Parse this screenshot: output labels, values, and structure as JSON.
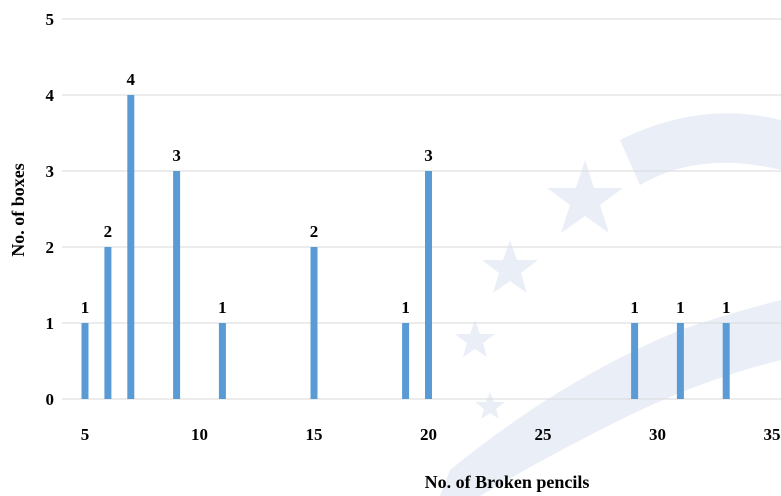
{
  "chart_data": {
    "type": "bar",
    "x": [
      5,
      6,
      7,
      9,
      11,
      15,
      19,
      20,
      29,
      31,
      33
    ],
    "values": [
      1,
      2,
      4,
      3,
      1,
      2,
      1,
      3,
      1,
      1,
      1
    ],
    "data_labels": [
      "1",
      "2",
      "4",
      "3",
      "1",
      "2",
      "1",
      "3",
      "1",
      "1",
      "1"
    ],
    "xlabel": "No. of Broken pencils",
    "ylabel": "No. of boxes",
    "xlim": [
      5,
      35
    ],
    "ylim": [
      0,
      5
    ],
    "x_ticks": [
      "5",
      "10",
      "15",
      "20",
      "25",
      "30",
      "35"
    ],
    "y_ticks": [
      "0",
      "1",
      "2",
      "3",
      "4",
      "5"
    ],
    "grid": true,
    "colors": {
      "bar": "#5b9bd5",
      "grid": "#d9d9d9"
    }
  }
}
